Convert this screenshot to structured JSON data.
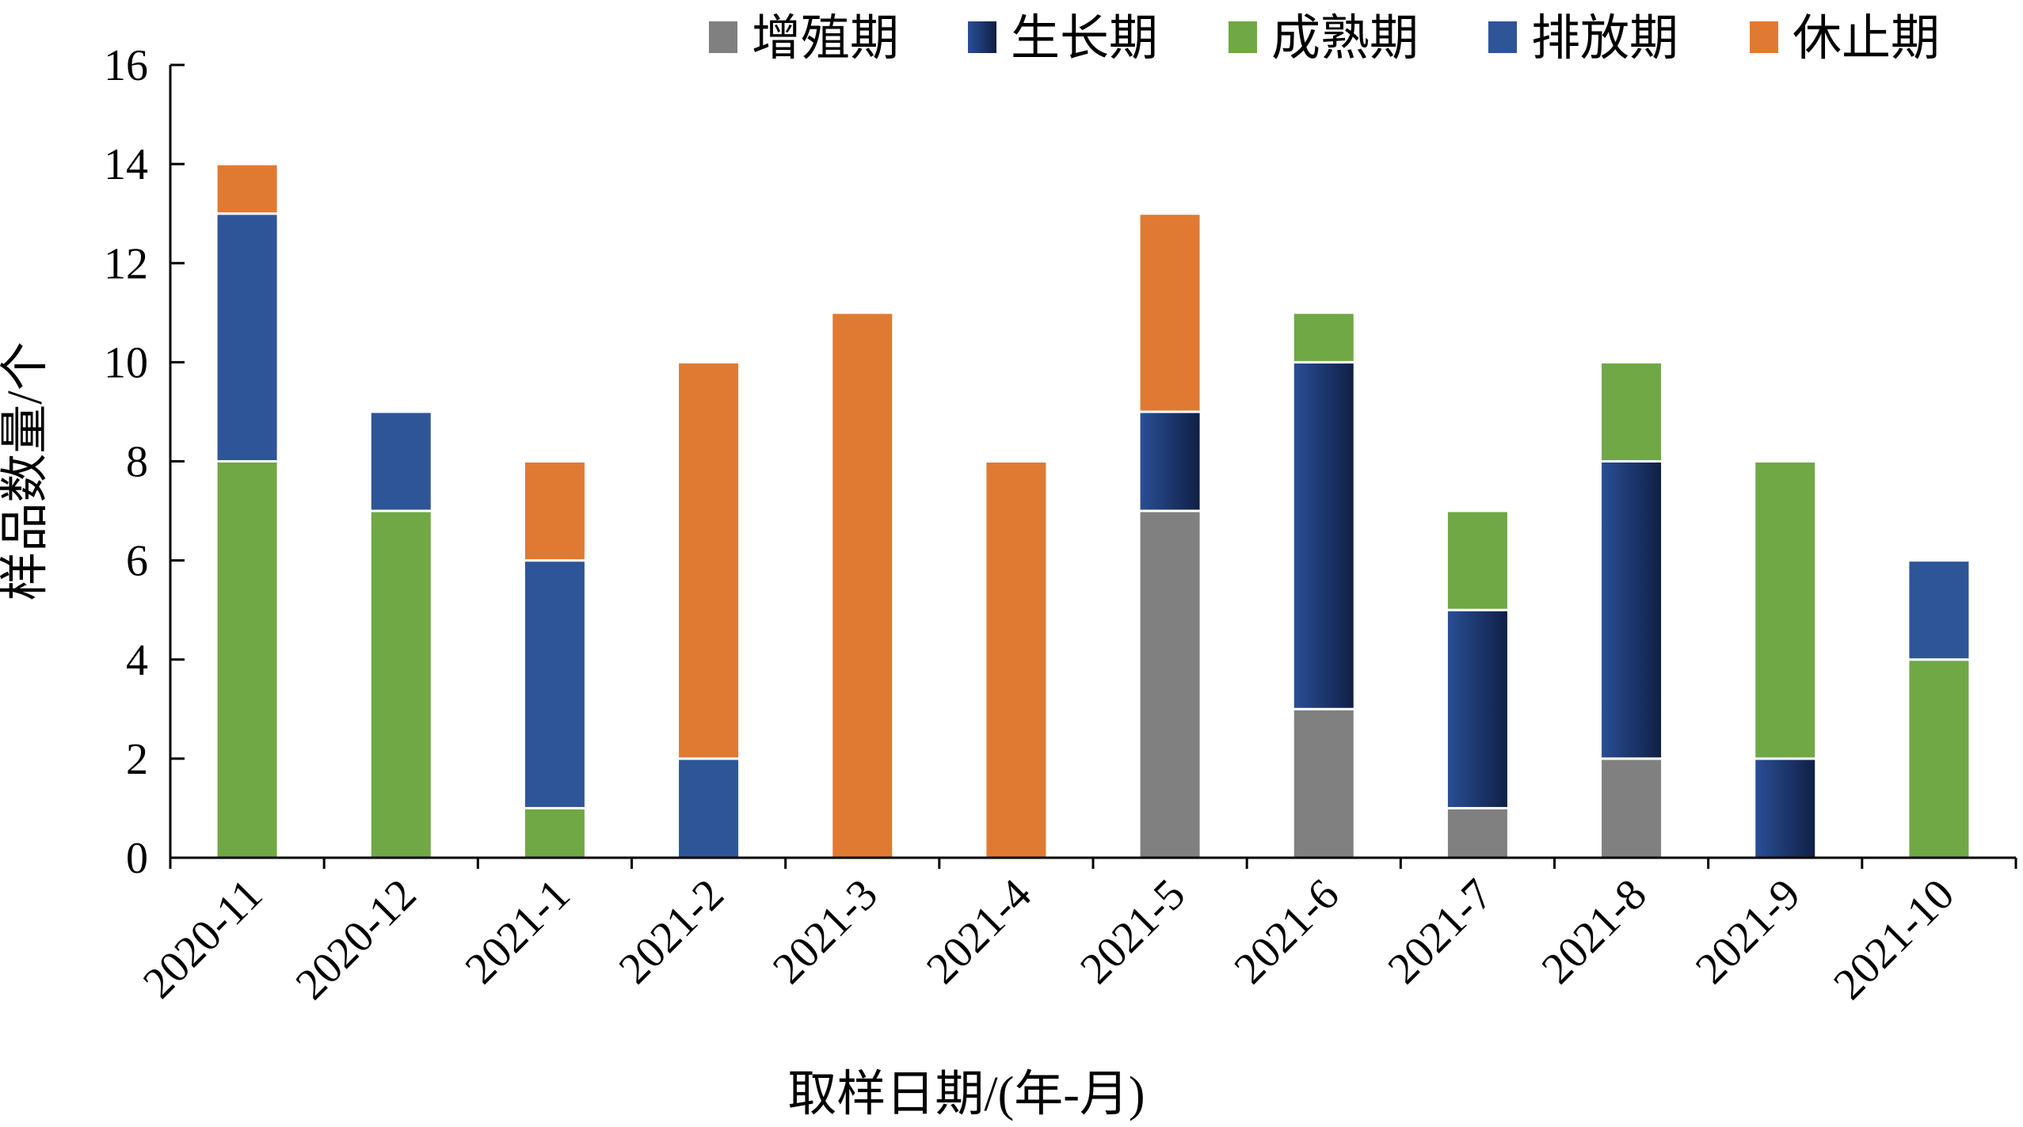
{
  "chart_data": {
    "type": "bar",
    "stacked": true,
    "xlabel": "取样日期/(年-月)",
    "ylabel": "样品数量/个",
    "ylim": [
      0,
      16
    ],
    "yticks": [
      0,
      2,
      4,
      6,
      8,
      10,
      12,
      14,
      16
    ],
    "categories": [
      "2020-11",
      "2020-12",
      "2021-1",
      "2021-2",
      "2021-3",
      "2021-4",
      "2021-5",
      "2021-6",
      "2021-7",
      "2021-8",
      "2021-9",
      "2021-10"
    ],
    "legend_position": "top-right",
    "grid": false,
    "series": [
      {
        "name": "增殖期",
        "color": "#808080",
        "values": [
          0,
          0,
          0,
          0,
          0,
          0,
          7,
          3,
          1,
          2,
          0,
          0
        ]
      },
      {
        "name": "生长期",
        "color": "#1f3a73",
        "values": [
          0,
          0,
          0,
          0,
          0,
          0,
          2,
          7,
          4,
          6,
          2,
          0
        ]
      },
      {
        "name": "成熟期",
        "color": "#70a845",
        "values": [
          8,
          7,
          1,
          0,
          0,
          0,
          0,
          1,
          2,
          2,
          6,
          4
        ]
      },
      {
        "name": "排放期",
        "color": "#2e5597",
        "values": [
          5,
          2,
          5,
          2,
          0,
          0,
          0,
          0,
          0,
          0,
          0,
          2
        ]
      },
      {
        "name": "休止期",
        "color": "#e07a33",
        "values": [
          1,
          0,
          2,
          8,
          11,
          8,
          4,
          0,
          0,
          0,
          0,
          0
        ]
      }
    ]
  }
}
